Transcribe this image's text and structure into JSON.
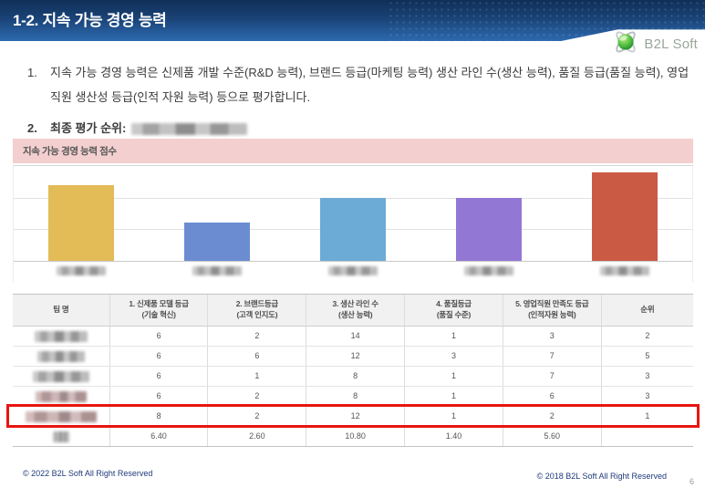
{
  "header": {
    "title": "1-2. 지속 가능 경영 능력",
    "logo_text": "B2L Soft"
  },
  "body": {
    "item1_number": "1.",
    "item1_text": "지속 가능 경영 능력은 신제품 개발 수준(R&D 능력), 브랜드 등급(마케팅 능력) 생산 라인 수(생산 능력), 품질 등급(품질 능력), 영업직원 생산성 등급(인적 자원 능력) 등으로 평가합니다.",
    "item2_number": "2.",
    "item2_label": "최종 평가 순위:",
    "item2_value_redacted": true
  },
  "chart_data": {
    "type": "bar",
    "title": "지속 가능 경영 능력 점수",
    "categories": [
      "",
      "",
      "",
      "",
      ""
    ],
    "categories_redacted": true,
    "values": [
      12,
      6,
      10,
      10,
      14
    ],
    "colors": [
      "#e3bb57",
      "#6c8cd2",
      "#6cabd6",
      "#9377d4",
      "#cb5a45"
    ],
    "ylim": [
      0,
      15
    ],
    "gridline_values": [
      5,
      10,
      15
    ],
    "grid": true,
    "legend": false,
    "xlabel": "",
    "ylabel": ""
  },
  "table": {
    "headers": [
      {
        "line1": "팀 명",
        "line2": ""
      },
      {
        "line1": "1. 신제품 모델 등급",
        "line2": "(기술 혁신)"
      },
      {
        "line1": "2. 브랜드등급",
        "line2": "(고객 인지도)"
      },
      {
        "line1": "3. 생산 라인 수",
        "line2": "(생산 능력)"
      },
      {
        "line1": "4. 품질등급",
        "line2": "(품질 수준)"
      },
      {
        "line1": "5. 영업직원 만족도 등급",
        "line2": "(인적자원 능력)"
      },
      {
        "line1": "순위",
        "line2": ""
      }
    ],
    "rows": [
      {
        "team_redacted": true,
        "blob_width": 58,
        "tint": "gray",
        "values": [
          "6",
          "2",
          "14",
          "1",
          "3",
          "2"
        ],
        "highlight": false,
        "is_average": false
      },
      {
        "team_redacted": true,
        "blob_width": 52,
        "tint": "gray",
        "values": [
          "6",
          "6",
          "12",
          "3",
          "7",
          "5"
        ],
        "highlight": false,
        "is_average": false
      },
      {
        "team_redacted": true,
        "blob_width": 62,
        "tint": "gray",
        "values": [
          "6",
          "1",
          "8",
          "1",
          "7",
          "3"
        ],
        "highlight": false,
        "is_average": false
      },
      {
        "team_redacted": true,
        "blob_width": 56,
        "tint": "pink",
        "values": [
          "6",
          "2",
          "8",
          "1",
          "6",
          "3"
        ],
        "highlight": false,
        "is_average": false
      },
      {
        "team_redacted": true,
        "blob_width": 78,
        "tint": "pink",
        "values": [
          "8",
          "2",
          "12",
          "1",
          "2",
          "1"
        ],
        "highlight": true,
        "is_average": false
      },
      {
        "team_redacted": true,
        "blob_width": 18,
        "tint": "gray",
        "values": [
          "6.40",
          "2.60",
          "10.80",
          "1.40",
          "5.60",
          ""
        ],
        "highlight": false,
        "is_average": true
      }
    ]
  },
  "footer": {
    "left": "© 2022 B2L Soft All Right Reserved",
    "right": "© 2018 B2L Soft All Right Reserved",
    "page": "6"
  }
}
